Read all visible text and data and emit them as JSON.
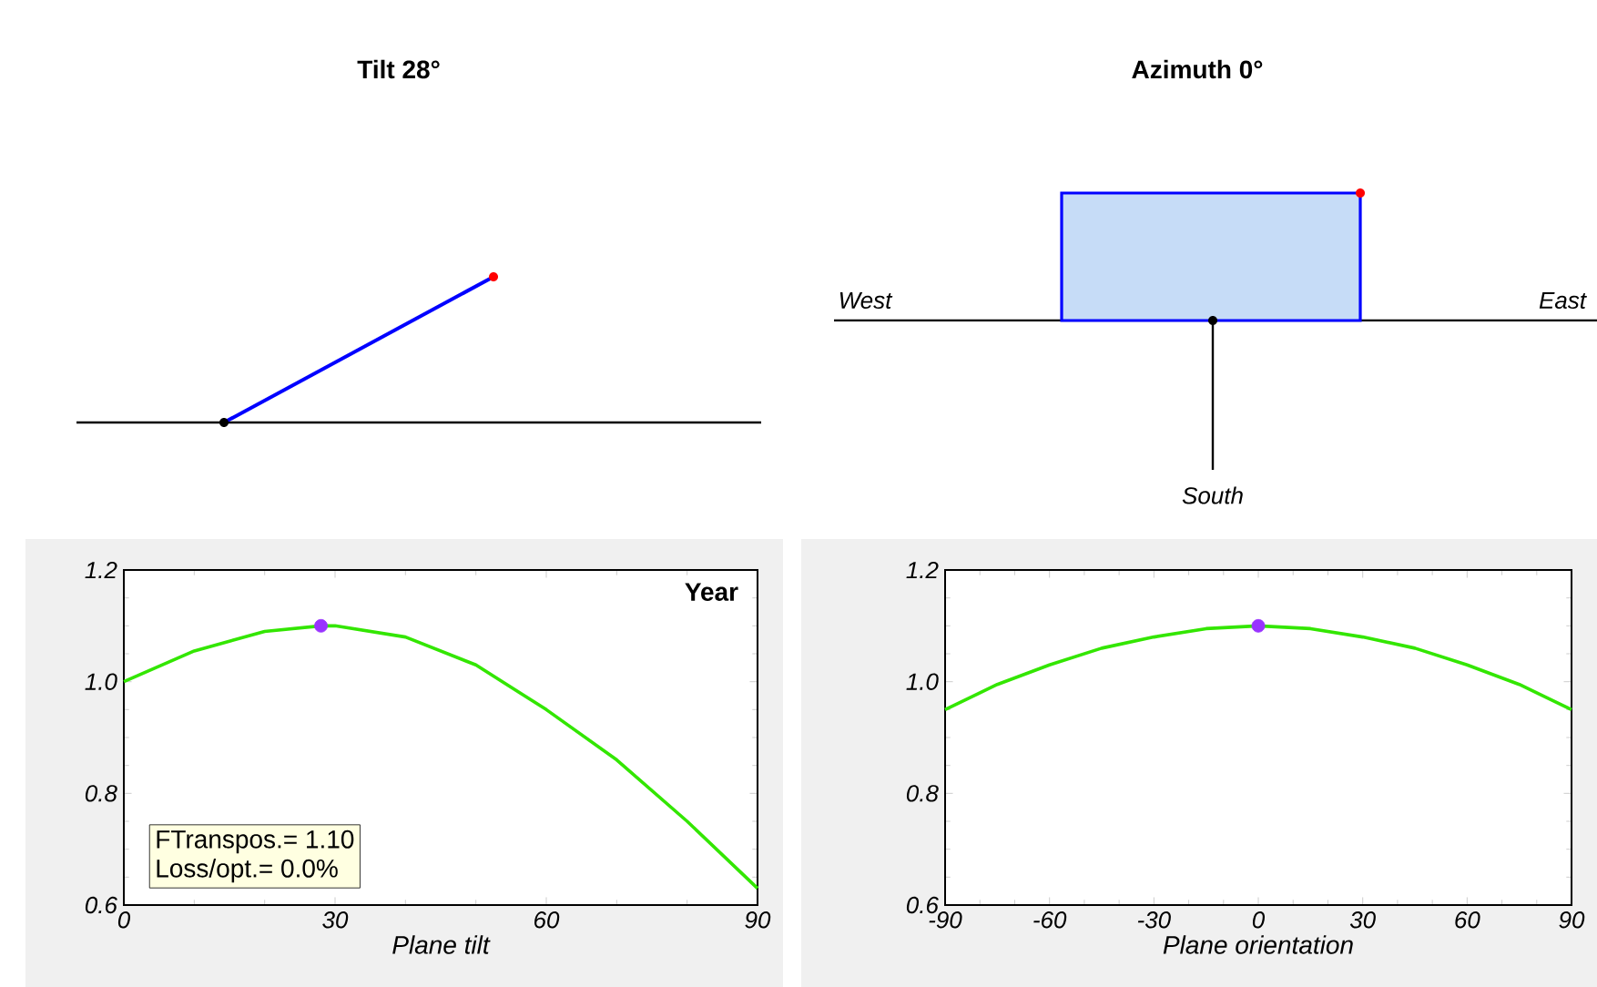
{
  "chart_data": [
    {
      "type": "other",
      "title": "Tilt 28°"
    },
    {
      "type": "other",
      "title": "Azimuth 0°",
      "annotations": [
        "West",
        "East",
        "South"
      ]
    },
    {
      "type": "line",
      "xlabel": "Plane tilt",
      "xlim": [
        0,
        90
      ],
      "ylim": [
        0.6,
        1.2
      ],
      "xticks": [
        0,
        30,
        60,
        90
      ],
      "yticks": [
        {
          "value": 0.6,
          "label": "0.6"
        },
        {
          "value": 0.8,
          "label": "0.8"
        },
        {
          "value": 1.0,
          "label": "1.0"
        },
        {
          "value": 1.2,
          "label": "1.2"
        }
      ],
      "annotations": [
        "Year",
        "FTranspos.= 1.10",
        "Loss/opt.= 0.0%"
      ],
      "series": [
        {
          "color": "#33e600",
          "x": [
            0,
            10,
            20,
            28,
            30,
            40,
            50,
            60,
            70,
            80,
            90
          ],
          "values": [
            1.0,
            1.055,
            1.09,
            1.1,
            1.1,
            1.08,
            1.03,
            0.95,
            0.86,
            0.75,
            0.63
          ]
        },
        {
          "type": "scatter",
          "color": "#9933ff",
          "x": [
            28
          ],
          "values": [
            1.1
          ]
        }
      ]
    },
    {
      "type": "line",
      "xlabel": "Plane orientation",
      "xlim": [
        -90,
        90
      ],
      "ylim": [
        0.6,
        1.2
      ],
      "xticks": [
        -90,
        -60,
        -30,
        0,
        30,
        60,
        90
      ],
      "yticks": [
        {
          "value": 0.6,
          "label": "0.6"
        },
        {
          "value": 0.8,
          "label": "0.8"
        },
        {
          "value": 1.0,
          "label": "1.0"
        },
        {
          "value": 1.2,
          "label": "1.2"
        }
      ],
      "series": [
        {
          "color": "#33e600",
          "x": [
            -90,
            -75,
            -60,
            -45,
            -30,
            -15,
            0,
            15,
            30,
            45,
            60,
            75,
            90
          ],
          "values": [
            0.95,
            0.995,
            1.03,
            1.06,
            1.08,
            1.095,
            1.1,
            1.095,
            1.08,
            1.06,
            1.03,
            0.995,
            0.95
          ]
        },
        {
          "type": "scatter",
          "color": "#9933ff",
          "x": [
            0
          ],
          "values": [
            1.1
          ]
        }
      ]
    }
  ]
}
